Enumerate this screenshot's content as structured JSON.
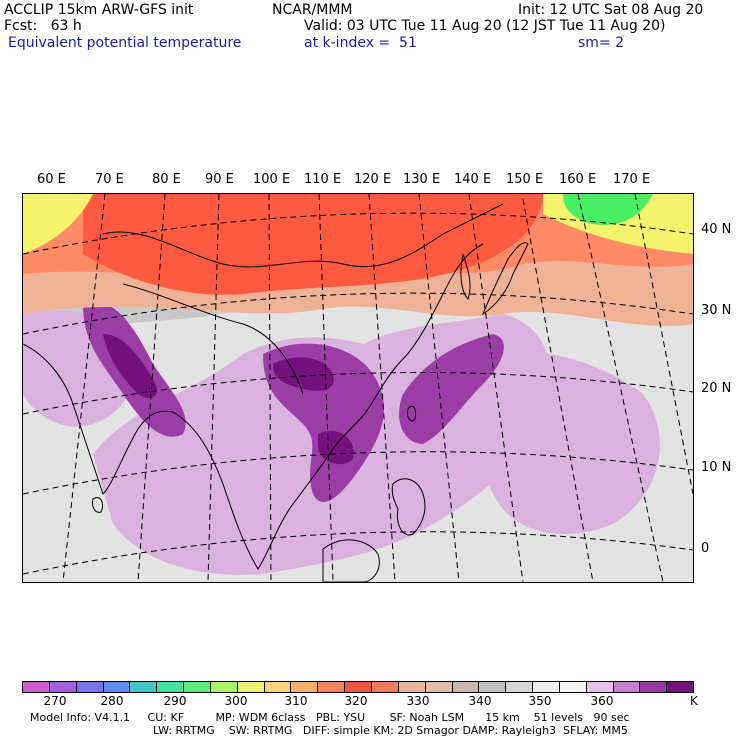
{
  "header": {
    "title": "ACCLIP 15km ARW-GFS init",
    "forecast": "Fcst:   63 h",
    "field": "Equivalent potential temperature",
    "center": "NCAR/MMM",
    "valid": "Valid: 03 UTC Tue 11 Aug 20 (12 JST Tue 11 Aug 20)",
    "level": "at k-index =  51",
    "init": "Init: 12 UTC Sat 08 Aug 20",
    "smoothing": "sm= 2"
  },
  "map": {
    "longitude_labels": [
      "60 E",
      "70 E",
      "80 E",
      "90 E",
      "100 E",
      "110 E",
      "120 E",
      "130 E",
      "140 E",
      "150 E",
      "160 E",
      "170 E"
    ],
    "latitude_labels": [
      "40 N",
      "30 N",
      "20 N",
      "10 N",
      "0"
    ],
    "colors": {
      "background": "#c9c9c9",
      "hot_band": "#ff5a40",
      "warm_band": "#ff8a66",
      "peach": "#f0b296",
      "light_grey": "#e3e3e3",
      "pale_purple": "#d9b2de",
      "mid_purple": "#9c3ca6",
      "dark_purple": "#76107e",
      "green": "#46ef64",
      "yellow": "#f4f46c",
      "coast": "#000000"
    }
  },
  "colorbar": {
    "unit": "K",
    "tick_labels": [
      "270",
      "280",
      "290",
      "300",
      "310",
      "320",
      "330",
      "340",
      "350",
      "360"
    ],
    "colors": [
      "#cf59cf",
      "#a45ee0",
      "#7a74ea",
      "#5b8cf0",
      "#3cc8c8",
      "#3ce6a0",
      "#55f07a",
      "#a8f56a",
      "#ecf46c",
      "#f8d276",
      "#f8b066",
      "#f4865a",
      "#f2553f",
      "#f5795b",
      "#f0b296",
      "#dcbca8",
      "#c9b9ae",
      "#c2c2c2",
      "#d6d6d6",
      "#eeeeee",
      "#f6f6f6",
      "#e5c2e8",
      "#c77fd0",
      "#9a38a3",
      "#77107e"
    ]
  },
  "model_info": {
    "line1": "Model Info: V4.1.1     CU: KF         MP: WDM 6class   PBL: YSU       SF: Noah LSM      15 km    51 levels   90 sec",
    "line2": "LW: RRTMG    SW: RRTMG   DIFF: simple KM: 2D Smagor DAMP: Rayleigh3  SFLAY: MM5"
  }
}
